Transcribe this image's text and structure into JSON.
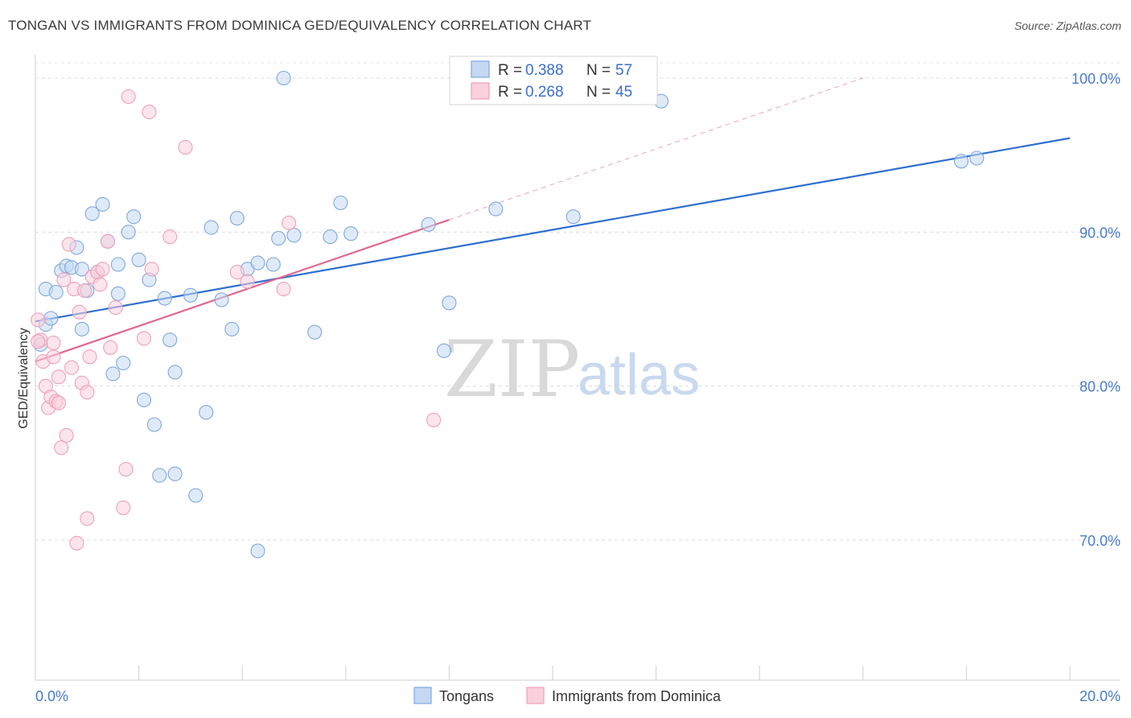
{
  "header": {
    "title": "TONGAN VS IMMIGRANTS FROM DOMINICA GED/EQUIVALENCY CORRELATION CHART",
    "source": "Source: ZipAtlas.com"
  },
  "watermark": {
    "zip": "ZIP",
    "atlas": "atlas"
  },
  "chart_data": {
    "type": "scatter",
    "title": "TONGAN VS IMMIGRANTS FROM DOMINICA GED/EQUIVALENCY CORRELATION CHART",
    "xlabel": "",
    "ylabel": "GED/Equivalency",
    "xlim": [
      0,
      20
    ],
    "ylim": [
      61,
      102
    ],
    "x_tick_labels": [
      {
        "value": 0,
        "label": "0.0%"
      },
      {
        "value": 20,
        "label": "20.0%"
      }
    ],
    "y_tick_labels": [
      {
        "value": 100,
        "label": "100.0%"
      },
      {
        "value": 90,
        "label": "90.0%"
      },
      {
        "value": 80,
        "label": "80.0%"
      },
      {
        "value": 70,
        "label": "70.0%"
      }
    ],
    "legend": {
      "placement": "top-center",
      "entries": [
        {
          "series": "Tongans",
          "r_label": "R =",
          "r_value": "0.388",
          "n_label": "N =",
          "n_value": "57"
        },
        {
          "series": "Immigrants from Dominica",
          "r_label": "R =",
          "r_value": "0.268",
          "n_label": "N =",
          "n_value": "45"
        }
      ]
    },
    "series": [
      {
        "name": "Tongans",
        "color": "#7fa8e0",
        "fill": "#c5d8f2",
        "line_color": "#2f6fd0",
        "trend": {
          "x": [
            0,
            20
          ],
          "y": [
            84.2,
            96.1
          ]
        },
        "points": [
          [
            0.2,
            84.0
          ],
          [
            0.3,
            84.4
          ],
          [
            0.2,
            86.3
          ],
          [
            0.4,
            86.1
          ],
          [
            0.5,
            87.5
          ],
          [
            0.6,
            87.8
          ],
          [
            0.7,
            87.7
          ],
          [
            0.8,
            89.0
          ],
          [
            0.9,
            83.7
          ],
          [
            0.9,
            87.6
          ],
          [
            1.0,
            86.2
          ],
          [
            1.1,
            91.2
          ],
          [
            1.2,
            87.4
          ],
          [
            1.3,
            91.8
          ],
          [
            1.4,
            89.4
          ],
          [
            1.5,
            80.8
          ],
          [
            1.6,
            86.0
          ],
          [
            1.6,
            87.9
          ],
          [
            1.7,
            81.5
          ],
          [
            1.8,
            90.0
          ],
          [
            1.9,
            91.0
          ],
          [
            2.0,
            88.2
          ],
          [
            2.1,
            79.1
          ],
          [
            2.2,
            86.9
          ],
          [
            2.3,
            77.5
          ],
          [
            2.4,
            74.2
          ],
          [
            2.5,
            85.7
          ],
          [
            2.6,
            83.0
          ],
          [
            2.7,
            74.3
          ],
          [
            2.7,
            80.9
          ],
          [
            3.0,
            85.9
          ],
          [
            3.1,
            72.9
          ],
          [
            3.3,
            78.3
          ],
          [
            3.4,
            90.3
          ],
          [
            3.6,
            85.6
          ],
          [
            3.8,
            83.7
          ],
          [
            3.9,
            90.9
          ],
          [
            4.1,
            87.6
          ],
          [
            4.3,
            88.0
          ],
          [
            4.3,
            69.3
          ],
          [
            4.6,
            87.9
          ],
          [
            4.7,
            89.6
          ],
          [
            4.8,
            100.0
          ],
          [
            5.0,
            89.8
          ],
          [
            5.4,
            83.5
          ],
          [
            5.7,
            89.7
          ],
          [
            5.9,
            91.9
          ],
          [
            6.1,
            89.9
          ],
          [
            7.6,
            90.5
          ],
          [
            7.9,
            82.3
          ],
          [
            8.0,
            85.4
          ],
          [
            8.9,
            91.5
          ],
          [
            10.4,
            91.0
          ],
          [
            12.1,
            98.5
          ],
          [
            17.9,
            94.6
          ],
          [
            18.2,
            94.8
          ],
          [
            0.1,
            82.7
          ]
        ]
      },
      {
        "name": "Immigrants from Dominica",
        "color": "#f0a0b8",
        "fill": "#f9d0dc",
        "line_color": "#e06890",
        "trend": {
          "x": [
            0,
            8
          ],
          "y": [
            81.6,
            90.8
          ]
        },
        "trend_dashed": {
          "x": [
            8,
            16
          ],
          "y": [
            90.8,
            100
          ]
        },
        "points": [
          [
            0.05,
            84.3
          ],
          [
            0.1,
            83.0
          ],
          [
            0.15,
            81.6
          ],
          [
            0.2,
            80.0
          ],
          [
            0.25,
            78.6
          ],
          [
            0.3,
            79.3
          ],
          [
            0.35,
            81.9
          ],
          [
            0.4,
            79.0
          ],
          [
            0.45,
            80.6
          ],
          [
            0.5,
            76.0
          ],
          [
            0.55,
            86.9
          ],
          [
            0.6,
            76.8
          ],
          [
            0.65,
            89.2
          ],
          [
            0.7,
            81.2
          ],
          [
            0.75,
            86.3
          ],
          [
            0.8,
            69.8
          ],
          [
            0.85,
            84.8
          ],
          [
            0.9,
            80.2
          ],
          [
            0.95,
            86.2
          ],
          [
            1.0,
            79.6
          ],
          [
            1.0,
            71.4
          ],
          [
            1.05,
            81.9
          ],
          [
            1.1,
            87.1
          ],
          [
            1.2,
            87.4
          ],
          [
            1.25,
            86.6
          ],
          [
            1.3,
            87.6
          ],
          [
            1.4,
            89.4
          ],
          [
            1.45,
            82.5
          ],
          [
            1.55,
            85.1
          ],
          [
            1.7,
            72.1
          ],
          [
            1.75,
            74.6
          ],
          [
            1.8,
            98.8
          ],
          [
            2.1,
            83.1
          ],
          [
            2.2,
            97.8
          ],
          [
            2.25,
            87.6
          ],
          [
            2.6,
            89.7
          ],
          [
            2.9,
            95.5
          ],
          [
            3.9,
            87.4
          ],
          [
            4.1,
            86.8
          ],
          [
            4.8,
            86.3
          ],
          [
            4.9,
            90.6
          ],
          [
            7.7,
            77.8
          ],
          [
            0.35,
            82.8
          ],
          [
            0.45,
            78.9
          ],
          [
            0.05,
            82.9
          ]
        ]
      }
    ]
  }
}
